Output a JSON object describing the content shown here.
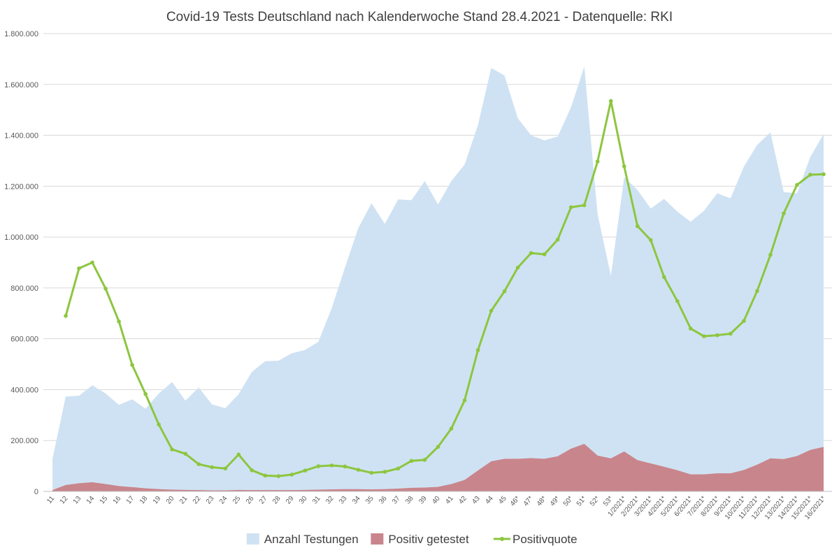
{
  "chart_data": {
    "type": "area-line",
    "title": "Covid-19 Tests Deutschland nach Kalenderwoche Stand 28.4.2021 - Datenquelle: RKI",
    "categories": [
      "11",
      "12",
      "13",
      "14",
      "15",
      "16",
      "17",
      "18",
      "19",
      "20",
      "21",
      "22",
      "23",
      "24",
      "25",
      "26",
      "27",
      "28",
      "29",
      "30",
      "31",
      "32",
      "33",
      "34",
      "35",
      "36",
      "37",
      "38",
      "39",
      "40",
      "41",
      "42",
      "43",
      "44",
      "45",
      "46*",
      "47*",
      "48*",
      "49*",
      "50*",
      "51*",
      "52*",
      "53*",
      "1/2021*",
      "2/2021*",
      "3/2021*",
      "4/2021*",
      "5/2021*",
      "6/2021*",
      "7/2021*",
      "8/2021*",
      "9/2021*",
      "10/2021*",
      "11/2021*",
      "12/2021*",
      "13/2021*",
      "14/2021*",
      "15/2021*",
      "16/2021*"
    ],
    "series": [
      {
        "name": "Anzahl Testungen",
        "kind": "area",
        "color": "#cfe2f3",
        "values": [
          127000,
          373000,
          376000,
          417000,
          385000,
          340000,
          362000,
          325000,
          385000,
          430000,
          357000,
          408000,
          342000,
          327000,
          382000,
          470000,
          512000,
          514000,
          543000,
          556000,
          588000,
          720000,
          880000,
          1035000,
          1133000,
          1052000,
          1148000,
          1145000,
          1220000,
          1128000,
          1220000,
          1285000,
          1440000,
          1665000,
          1635000,
          1467000,
          1400000,
          1380000,
          1395000,
          1510000,
          1670000,
          1090000,
          848000,
          1235000,
          1185000,
          1112000,
          1150000,
          1100000,
          1060000,
          1103000,
          1172000,
          1152000,
          1277000,
          1362000,
          1412000,
          1177000,
          1172000,
          1315000,
          1405000
        ]
      },
      {
        "name": "Positiv getestet",
        "kind": "area",
        "color": "#c9858c",
        "values": [
          5000,
          25000,
          32000,
          36000,
          29000,
          21000,
          17000,
          12000,
          9000,
          7000,
          6000,
          5000,
          4000,
          4000,
          6000,
          5000,
          5000,
          5000,
          5000,
          6000,
          7000,
          8000,
          9000,
          9000,
          8000,
          9000,
          11000,
          14000,
          15000,
          18000,
          29000,
          45000,
          82000,
          118000,
          128000,
          128000,
          131000,
          128000,
          138000,
          168000,
          187000,
          141000,
          130000,
          157000,
          123000,
          110000,
          97000,
          83000,
          67000,
          67000,
          71000,
          71000,
          84000,
          105000,
          130000,
          127000,
          139000,
          163000,
          175000
        ]
      },
      {
        "name": "Positivquote",
        "kind": "line",
        "color": "#8cc63f",
        "values": [
          null,
          690000,
          877000,
          900000,
          797000,
          668000,
          497000,
          383000,
          263000,
          165000,
          148000,
          107000,
          95000,
          90000,
          145000,
          83000,
          62000,
          60000,
          66000,
          82000,
          99000,
          102000,
          98000,
          85000,
          73000,
          77000,
          90000,
          120000,
          124000,
          175000,
          247000,
          358000,
          555000,
          710000,
          787000,
          880000,
          937000,
          932000,
          990000,
          1117000,
          1125000,
          1297000,
          1535000,
          1278000,
          1043000,
          988000,
          843000,
          748000,
          640000,
          610000,
          614000,
          620000,
          670000,
          788000,
          930000,
          1093000,
          1205000,
          1245000,
          1247000
        ]
      }
    ],
    "ylim": [
      0,
      1800000
    ],
    "yticks": [
      0,
      {
        "value": 200000,
        "label": "200.000"
      },
      {
        "value": 400000,
        "label": "400.000"
      },
      {
        "value": 600000,
        "label": "600.000"
      },
      {
        "value": 800000,
        "label": "800.000"
      },
      {
        "value": 1000000,
        "label": "1.000.000"
      },
      {
        "value": 1200000,
        "label": "1.200.000"
      },
      {
        "value": 1400000,
        "label": "1.400.000"
      },
      {
        "value": 1600000,
        "label": "1.600.000"
      },
      {
        "value": 1800000,
        "label": "1.800.000"
      }
    ],
    "grid": true,
    "legend": "bottom"
  }
}
